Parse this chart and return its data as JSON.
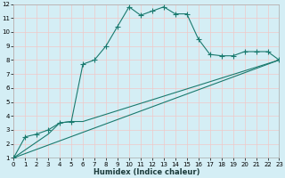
{
  "xlabel": "Humidex (Indice chaleur)",
  "bg_color": "#d4eef5",
  "grid_color": "#f0c8c8",
  "line_color": "#1a7a6e",
  "xlim": [
    0,
    23
  ],
  "ylim": [
    1,
    12
  ],
  "xticks": [
    0,
    1,
    2,
    3,
    4,
    5,
    6,
    7,
    8,
    9,
    10,
    11,
    12,
    13,
    14,
    15,
    16,
    17,
    18,
    19,
    20,
    21,
    22,
    23
  ],
  "yticks": [
    1,
    2,
    3,
    4,
    5,
    6,
    7,
    8,
    9,
    10,
    11,
    12
  ],
  "curve1_x": [
    0,
    1,
    2,
    3,
    4,
    5,
    6,
    7,
    8,
    9,
    10,
    11,
    12,
    13,
    14,
    15,
    16,
    17,
    18,
    19,
    20,
    21,
    22,
    23
  ],
  "curve1_y": [
    1.0,
    2.5,
    2.7,
    3.0,
    3.5,
    3.6,
    7.7,
    8.0,
    9.0,
    10.4,
    11.8,
    11.2,
    11.5,
    11.8,
    11.3,
    11.3,
    9.5,
    8.4,
    8.3,
    8.3,
    8.6,
    8.6,
    8.6,
    8.0
  ],
  "curve2_x": [
    0,
    23
  ],
  "curve2_y": [
    1.0,
    8.0
  ],
  "curve3_x": [
    0,
    3,
    4,
    5,
    6,
    23
  ],
  "curve3_y": [
    1.0,
    2.7,
    3.5,
    3.6,
    3.6,
    8.0
  ],
  "xlabel_fontsize": 6.0,
  "tick_fontsize": 5.0,
  "linewidth": 0.8,
  "markersize": 2.0
}
